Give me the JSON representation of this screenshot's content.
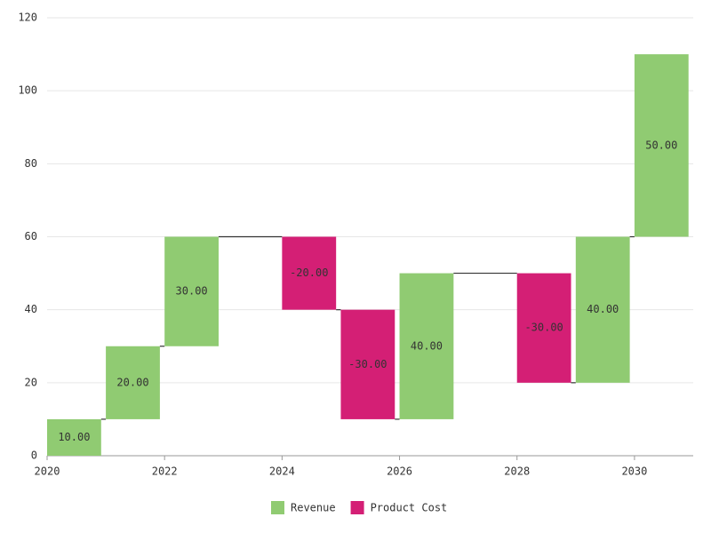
{
  "chart_data": {
    "type": "waterfall",
    "x": [
      2020,
      2021,
      2022,
      2024,
      2025,
      2026,
      2028,
      2029,
      2030
    ],
    "series": [
      {
        "name": "Revenue",
        "color": "#90cb72",
        "values": [
          10,
          20,
          30,
          null,
          null,
          40,
          null,
          40,
          50
        ],
        "value_labels": [
          "10.00",
          "20.00",
          "30.00",
          null,
          null,
          "40.00",
          null,
          "40.00",
          "50.00"
        ]
      },
      {
        "name": "Product Cost",
        "color": "#d41f75",
        "values": [
          null,
          null,
          null,
          -20,
          -30,
          null,
          -30,
          null,
          null
        ],
        "value_labels": [
          null,
          null,
          null,
          "-20.00",
          "-30.00",
          null,
          "-30.00",
          null,
          null
        ]
      }
    ],
    "xlim": [
      2020,
      2031
    ],
    "xticks": [
      2020,
      2022,
      2024,
      2026,
      2028,
      2030
    ],
    "ylim": [
      0,
      120
    ],
    "yticks": [
      0,
      20,
      40,
      60,
      80,
      100,
      120
    ],
    "grid": true,
    "legend": "bottom"
  }
}
